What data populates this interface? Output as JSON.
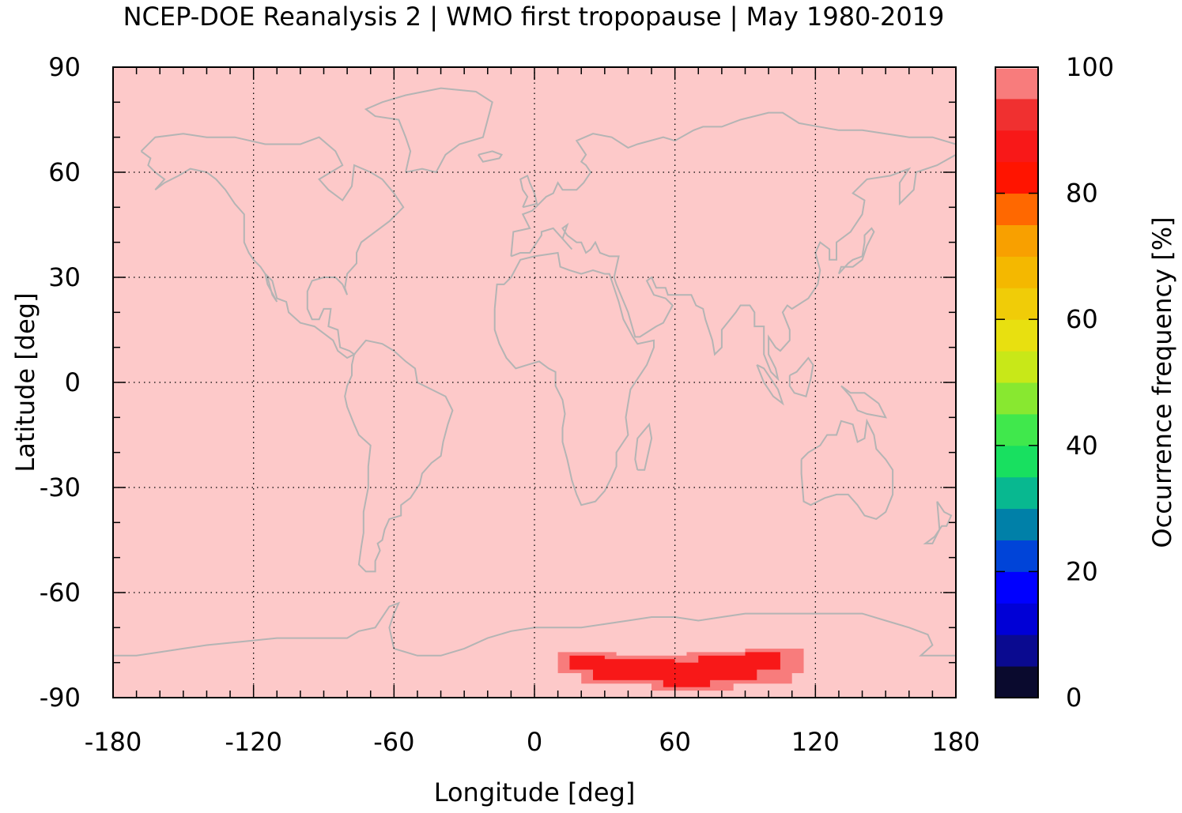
{
  "chart_data": {
    "type": "heatmap",
    "title": "NCEP-DOE Reanalysis 2 | WMO first tropopause | May 1980-2019",
    "xlabel": "Longitude [deg]",
    "ylabel": "Latitude [deg]",
    "xlim": [
      -180,
      180
    ],
    "ylim": [
      -90,
      90
    ],
    "x_ticks": [
      -180,
      -120,
      -60,
      0,
      60,
      120,
      180
    ],
    "y_ticks": [
      -90,
      -60,
      -30,
      0,
      30,
      60,
      90
    ],
    "grid": true,
    "background_value": 100,
    "background_color": "#fdc9c9",
    "coastline_color": "#b4b4b4",
    "colorbar": {
      "label": "Occurrence frequency [%]",
      "range": [
        0,
        100
      ],
      "ticks": [
        0,
        20,
        40,
        60,
        80,
        100
      ],
      "step": 5,
      "colors": [
        "#0a0a2e",
        "#0a0a90",
        "#0000d6",
        "#0000ff",
        "#0044d8",
        "#0080a8",
        "#08b890",
        "#18e060",
        "#40e84c",
        "#88e830",
        "#c8e818",
        "#e8e010",
        "#f0cc08",
        "#f4b800",
        "#f8a000",
        "#ff6800",
        "#ff1400",
        "#f81818",
        "#f03030",
        "#f87c7c",
        "#fdc9c9"
      ]
    },
    "anomaly_region": {
      "description_value_core": 87,
      "description_value_edge": 95,
      "lon_range": [
        10,
        115
      ],
      "lat_range": [
        -88,
        -76
      ],
      "core": [
        {
          "lon": [
            15,
            30
          ],
          "lat": [
            -82,
            -78
          ]
        },
        {
          "lon": [
            25,
            60
          ],
          "lat": [
            -85,
            -79
          ]
        },
        {
          "lon": [
            55,
            75
          ],
          "lat": [
            -87,
            -80
          ]
        },
        {
          "lon": [
            70,
            95
          ],
          "lat": [
            -85,
            -78
          ]
        },
        {
          "lon": [
            90,
            105
          ],
          "lat": [
            -82,
            -77
          ]
        }
      ],
      "edge": [
        {
          "lon": [
            10,
            35
          ],
          "lat": [
            -83,
            -77
          ]
        },
        {
          "lon": [
            20,
            65
          ],
          "lat": [
            -86,
            -78
          ]
        },
        {
          "lon": [
            50,
            85
          ],
          "lat": [
            -88,
            -79
          ]
        },
        {
          "lon": [
            65,
            110
          ],
          "lat": [
            -86,
            -77
          ]
        },
        {
          "lon": [
            90,
            115
          ],
          "lat": [
            -83,
            -76
          ]
        }
      ]
    }
  }
}
